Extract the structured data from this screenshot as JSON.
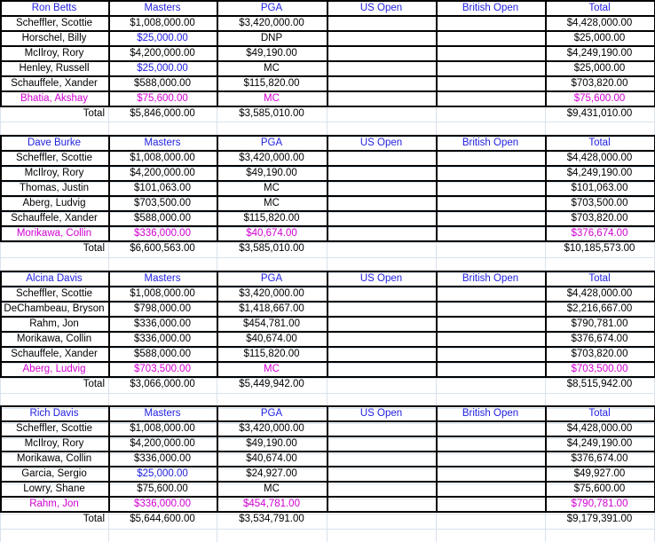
{
  "columns": [
    "Masters",
    "PGA",
    "US Open",
    "British Open",
    "Total"
  ],
  "total_label": "Total",
  "colors": {
    "header": "#2121e0",
    "highlight_blue": "#2121e0",
    "alternate": "#d000d0"
  },
  "blocks": [
    {
      "owner": "Ron Betts",
      "rows": [
        {
          "name": "Scheffler, Scottie",
          "masters": "$1,008,000.00",
          "pga": "$3,420,000.00",
          "us_open": "",
          "british_open": "",
          "total": "$4,428,000.00",
          "style": ""
        },
        {
          "name": "Horschel, Billy",
          "masters": "$25,000.00",
          "pga": "DNP",
          "us_open": "",
          "british_open": "",
          "total": "$25,000.00",
          "style": "blue-masters"
        },
        {
          "name": "McIlroy, Rory",
          "masters": "$4,200,000.00",
          "pga": "$49,190.00",
          "us_open": "",
          "british_open": "",
          "total": "$4,249,190.00",
          "style": ""
        },
        {
          "name": "Henley, Russell",
          "masters": "$25,000.00",
          "pga": "MC",
          "us_open": "",
          "british_open": "",
          "total": "$25,000.00",
          "style": "blue-masters"
        },
        {
          "name": "Schauffele, Xander",
          "masters": "$588,000.00",
          "pga": "$115,820.00",
          "us_open": "",
          "british_open": "",
          "total": "$703,820.00",
          "style": ""
        },
        {
          "name": "Bhatia, Akshay",
          "masters": "$75,600.00",
          "pga": "MC",
          "us_open": "",
          "british_open": "",
          "total": "$75,600.00",
          "style": "magenta"
        }
      ],
      "totals": {
        "masters": "$5,846,000.00",
        "pga": "$3,585,010.00",
        "us_open": "",
        "british_open": "",
        "total": "$9,431,010.00"
      }
    },
    {
      "owner": "Dave Burke",
      "rows": [
        {
          "name": "Scheffler, Scottie",
          "masters": "$1,008,000.00",
          "pga": "$3,420,000.00",
          "us_open": "",
          "british_open": "",
          "total": "$4,428,000.00",
          "style": ""
        },
        {
          "name": "McIlroy, Rory",
          "masters": "$4,200,000.00",
          "pga": "$49,190.00",
          "us_open": "",
          "british_open": "",
          "total": "$4,249,190.00",
          "style": ""
        },
        {
          "name": "Thomas, Justin",
          "masters": "$101,063.00",
          "pga": "MC",
          "us_open": "",
          "british_open": "",
          "total": "$101,063.00",
          "style": ""
        },
        {
          "name": "Aberg, Ludvig",
          "masters": "$703,500.00",
          "pga": "MC",
          "us_open": "",
          "british_open": "",
          "total": "$703,500.00",
          "style": ""
        },
        {
          "name": "Schauffele, Xander",
          "masters": "$588,000.00",
          "pga": "$115,820.00",
          "us_open": "",
          "british_open": "",
          "total": "$703,820.00",
          "style": ""
        },
        {
          "name": "Morikawa, Collin",
          "masters": "$336,000.00",
          "pga": "$40,674.00",
          "us_open": "",
          "british_open": "",
          "total": "$376,674.00",
          "style": "magenta"
        }
      ],
      "totals": {
        "masters": "$6,600,563.00",
        "pga": "$3,585,010.00",
        "us_open": "",
        "british_open": "",
        "total": "$10,185,573.00"
      }
    },
    {
      "owner": "Alcina Davis",
      "rows": [
        {
          "name": "Scheffler, Scottie",
          "masters": "$1,008,000.00",
          "pga": "$3,420,000.00",
          "us_open": "",
          "british_open": "",
          "total": "$4,428,000.00",
          "style": ""
        },
        {
          "name": "DeChambeau, Bryson",
          "masters": "$798,000.00",
          "pga": "$1,418,667.00",
          "us_open": "",
          "british_open": "",
          "total": "$2,216,667.00",
          "style": ""
        },
        {
          "name": "Rahm, Jon",
          "masters": "$336,000.00",
          "pga": "$454,781.00",
          "us_open": "",
          "british_open": "",
          "total": "$790,781.00",
          "style": ""
        },
        {
          "name": "Morikawa, Collin",
          "masters": "$336,000.00",
          "pga": "$40,674.00",
          "us_open": "",
          "british_open": "",
          "total": "$376,674.00",
          "style": ""
        },
        {
          "name": "Schauffele, Xander",
          "masters": "$588,000.00",
          "pga": "$115,820.00",
          "us_open": "",
          "british_open": "",
          "total": "$703,820.00",
          "style": ""
        },
        {
          "name": "Aberg, Ludvig",
          "masters": "$703,500.00",
          "pga": "MC",
          "us_open": "",
          "british_open": "",
          "total": "$703,500.00",
          "style": "magenta"
        }
      ],
      "totals": {
        "masters": "$3,066,000.00",
        "pga": "$5,449,942.00",
        "us_open": "",
        "british_open": "",
        "total": "$8,515,942.00"
      }
    },
    {
      "owner": "Rich Davis",
      "rows": [
        {
          "name": "Scheffler, Scottie",
          "masters": "$1,008,000.00",
          "pga": "$3,420,000.00",
          "us_open": "",
          "british_open": "",
          "total": "$4,428,000.00",
          "style": ""
        },
        {
          "name": "McIlroy, Rory",
          "masters": "$4,200,000.00",
          "pga": "$49,190.00",
          "us_open": "",
          "british_open": "",
          "total": "$4,249,190.00",
          "style": ""
        },
        {
          "name": "Morikawa, Collin",
          "masters": "$336,000.00",
          "pga": "$40,674.00",
          "us_open": "",
          "british_open": "",
          "total": "$376,674.00",
          "style": ""
        },
        {
          "name": "Garcia, Sergio",
          "masters": "$25,000.00",
          "pga": "$24,927.00",
          "us_open": "",
          "british_open": "",
          "total": "$49,927.00",
          "style": "blue-masters"
        },
        {
          "name": "Lowry, Shane",
          "masters": "$75,600.00",
          "pga": "MC",
          "us_open": "",
          "british_open": "",
          "total": "$75,600.00",
          "style": ""
        },
        {
          "name": "Rahm, Jon",
          "masters": "$336,000.00",
          "pga": "$454,781.00",
          "us_open": "",
          "british_open": "",
          "total": "$790,781.00",
          "style": "magenta"
        }
      ],
      "totals": {
        "masters": "$5,644,600.00",
        "pga": "$3,534,791.00",
        "us_open": "",
        "british_open": "",
        "total": "$9,179,391.00"
      }
    }
  ]
}
